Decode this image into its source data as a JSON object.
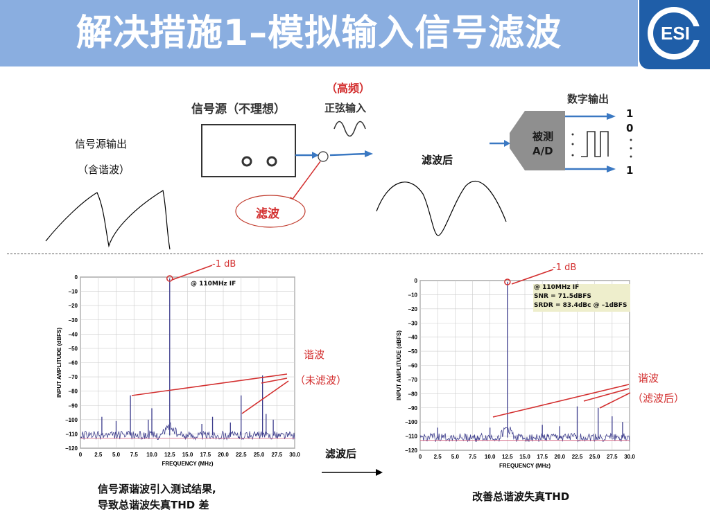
{
  "title": "解决措施1–模拟输入信号滤波",
  "logo_text": "ESI",
  "diagram": {
    "source_output": "信号源输出",
    "contains_harmonics": "（含谐波）",
    "source_label": "信号源（不理想）",
    "high_freq": "（高频）",
    "sine_input": "正弦输入",
    "filter": "滤波",
    "after_filter": "滤波后",
    "digital_output": "数字输出",
    "dut_line1": "被测",
    "dut_line2": "A/D",
    "bit_top": "1",
    "bit_second": "0",
    "bit_bottom": "1"
  },
  "left_spectrum": {
    "marker": "-1 dB",
    "note": "@ 110MHz IF",
    "harmonics": "谐波",
    "unfiltered": "（未滤波）",
    "ylabel": "INPUT AMPLITUDE (dBFS)",
    "xlabel": "FREQUENCY (MHz)",
    "caption_line1": "信号源谐波引入测试结果,",
    "caption_line2": "导致总谐波失真THD 差"
  },
  "right_spectrum": {
    "marker": "-1 dB",
    "note_line1": "@ 110MHz IF",
    "note_line2": "SNR = 71.5dBFS",
    "note_line3": "SRDR = 83.4dBc @ –1dBFS",
    "harmonics": "谐波",
    "filtered": "（滤波后）",
    "ylabel": "INPUT AMPLITUDE (dBFS)",
    "xlabel": "FREQUENCY (MHz)",
    "caption": "改善总谐波失真THD"
  },
  "arrow_label": "滤波后",
  "chart_data": [
    {
      "type": "line",
      "title": "",
      "xlabel": "FREQUENCY (MHz)",
      "ylabel": "INPUT AMPLITUDE (dBFS)",
      "xlim": [
        0,
        30
      ],
      "ylim": [
        -120,
        0
      ],
      "x_ticks": [
        "0",
        "2.5",
        "5.0",
        "7.5",
        "10.0",
        "12.5",
        "15.0",
        "17.5",
        "20.0",
        "22.5",
        "25.0",
        "27.5",
        "30.0"
      ],
      "y_ticks": [
        "0",
        "–10",
        "–20",
        "–30",
        "–40",
        "–50",
        "–60",
        "–70",
        "–80",
        "–90",
        "–100",
        "–110",
        "–120"
      ],
      "noise_floor": -111,
      "spurs": [
        {
          "x": 12.5,
          "y": -1
        },
        {
          "x": 7.0,
          "y": -83
        },
        {
          "x": 25.5,
          "y": -69
        },
        {
          "x": 22.5,
          "y": -83
        },
        {
          "x": 3.0,
          "y": -98
        },
        {
          "x": 5.0,
          "y": -101
        },
        {
          "x": 9.5,
          "y": -100
        },
        {
          "x": 10.0,
          "y": -92
        },
        {
          "x": 17.0,
          "y": -103
        },
        {
          "x": 18.5,
          "y": -98
        },
        {
          "x": 21.0,
          "y": -102
        },
        {
          "x": 26.0,
          "y": -96
        },
        {
          "x": 27.0,
          "y": -100
        }
      ]
    },
    {
      "type": "line",
      "title": "",
      "xlabel": "FREQUENCY (MHz)",
      "ylabel": "INPUT AMPLITUDE (dBFS)",
      "xlim": [
        0,
        30
      ],
      "ylim": [
        -120,
        0
      ],
      "x_ticks": [
        "0",
        "2.5",
        "5.0",
        "7.5",
        "10.0",
        "12.5",
        "15.0",
        "17.5",
        "20.0",
        "22.5",
        "25.0",
        "27.5",
        "30.0"
      ],
      "y_ticks": [
        "0",
        "–10",
        "–20",
        "–30",
        "–40",
        "–50",
        "–60",
        "–70",
        "–80",
        "–90",
        "–100",
        "–110",
        "–120"
      ],
      "noise_floor": -111,
      "spurs": [
        {
          "x": 12.5,
          "y": -1
        },
        {
          "x": 22.5,
          "y": -89
        },
        {
          "x": 25.5,
          "y": -90
        },
        {
          "x": 2.5,
          "y": -104
        },
        {
          "x": 10.0,
          "y": -104
        },
        {
          "x": 17.5,
          "y": -102
        },
        {
          "x": 20.0,
          "y": -103
        },
        {
          "x": 27.5,
          "y": -96
        },
        {
          "x": 29.0,
          "y": -100
        }
      ]
    }
  ]
}
